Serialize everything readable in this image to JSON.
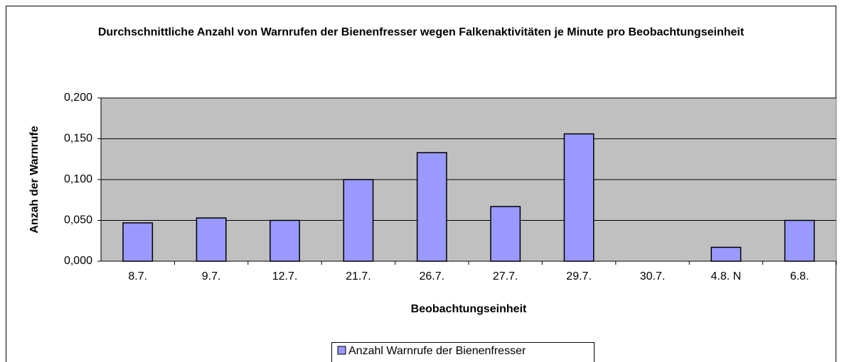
{
  "chart_data": {
    "type": "bar",
    "title": "Durchschnittliche Anzahl von Warnrufen der Bienenfresser wegen Falkenaktivitäten je Minute pro Beobachtungseinheit",
    "x_label": "Beobachtungseinheit",
    "y_label": "Anzah der Warnrufe",
    "categories": [
      "8.7.",
      "9.7.",
      "12.7.",
      "21.7.",
      "26.7.",
      "27.7.",
      "29.7.",
      "30.7.",
      "4.8. N",
      "6.8."
    ],
    "series": [
      {
        "name": "Anzahl Warnrufe der Bienenfresser",
        "color": "#9999ff",
        "values": [
          0.047,
          0.053,
          0.05,
          0.1,
          0.133,
          0.067,
          0.156,
          0,
          0.017,
          0.05
        ]
      }
    ],
    "ylim": [
      0,
      0.2
    ],
    "yticks": [
      {
        "value": 0,
        "label": "0,000"
      },
      {
        "value": 0.05,
        "label": "0,050"
      },
      {
        "value": 0.1,
        "label": "0,100"
      },
      {
        "value": 0.15,
        "label": "0,150"
      },
      {
        "value": 0.2,
        "label": "0,200"
      }
    ],
    "grid": true,
    "legend": "bottom",
    "plot_background": "#c0c0c0"
  }
}
